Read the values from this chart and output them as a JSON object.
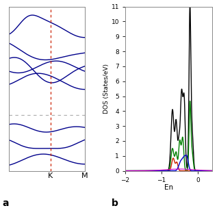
{
  "fig_width": 3.2,
  "fig_height": 3.2,
  "fig_dpi": 100,
  "band_structure": {
    "k_K": 0.55,
    "k_M": 1.0,
    "k_labels": [
      "K",
      "M"
    ],
    "color": "#00008B",
    "linewidth": 1.0,
    "dashed_color": "#cc2200",
    "fermi_color": "#aaaaaa",
    "fermi_y": 0.28,
    "ylim": [
      -0.12,
      1.05
    ],
    "xlim": [
      0.0,
      1.0
    ]
  },
  "dos": {
    "xlabel": "En",
    "ylabel": "DOS (States/eV)",
    "xlim": [
      -2.0,
      0.4
    ],
    "ylim": [
      0,
      11
    ],
    "yticks": [
      0,
      1,
      2,
      3,
      4,
      5,
      6,
      7,
      8,
      9,
      10,
      11
    ],
    "xticks": [
      -2,
      -1,
      0
    ],
    "colors": {
      "total": "#000000",
      "green": "#008000",
      "red": "#cc2200",
      "blue": "#0000cc",
      "magenta": "#cc00cc"
    }
  }
}
